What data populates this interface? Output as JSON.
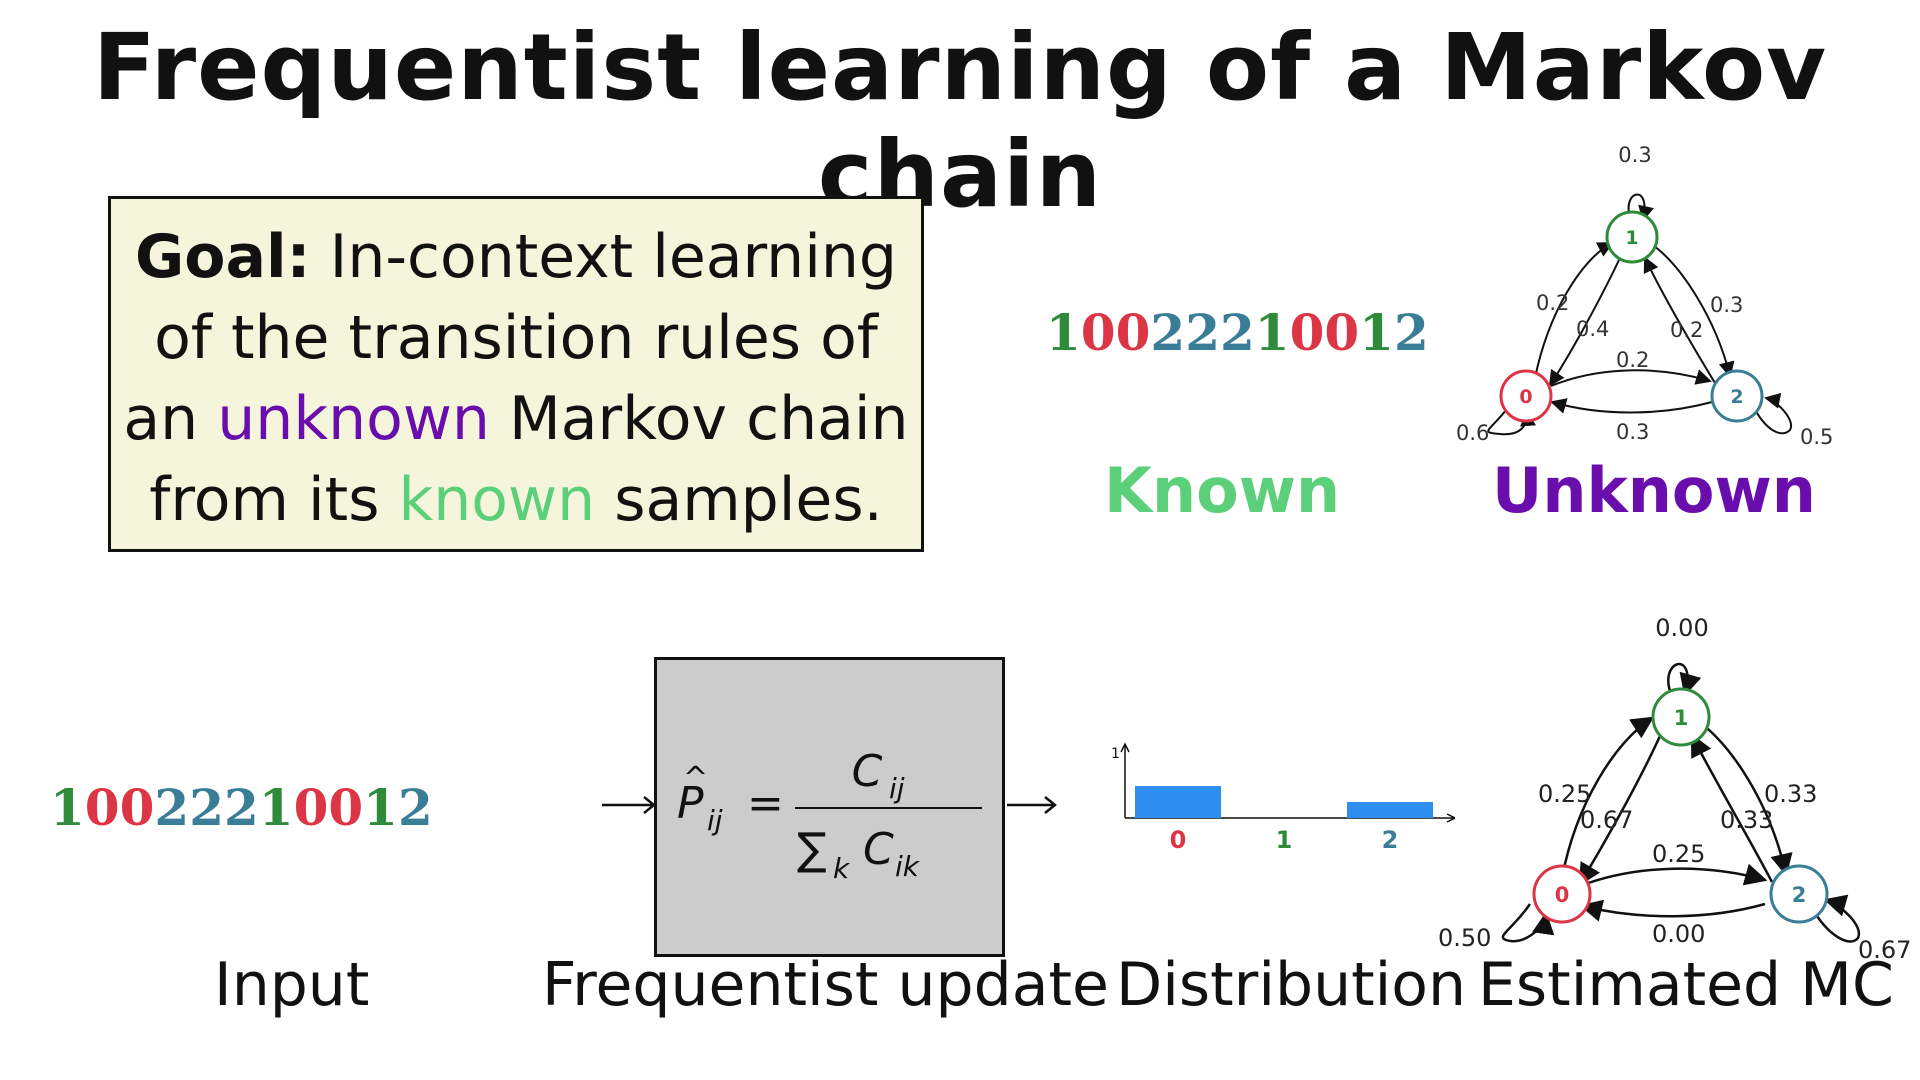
{
  "title": "Frequentist learning of a Markov chain",
  "goal": {
    "bold_prefix": "Goal:",
    "line1_rest": " In-context learning",
    "line2": "of the transition rules of",
    "line3_prefix": "an ",
    "line3_highlight": "unknown",
    "line3_suffix": " Markov chain",
    "line4_prefix": "from its ",
    "line4_highlight": "known",
    "line4_suffix": " samples."
  },
  "sequence": [
    "1",
    "0",
    "0",
    "2",
    "2",
    "2",
    "1",
    "0",
    "0",
    "1",
    "2"
  ],
  "labels": {
    "known": "Known",
    "unknown": "Unknown"
  },
  "captions": {
    "input": "Input",
    "update": "Frequentist update",
    "distribution": "Distribution",
    "estimated": "Estimated MC"
  },
  "true_chain": {
    "nodes": [
      "0",
      "1",
      "2"
    ],
    "edges": [
      {
        "from": "1",
        "to": "1",
        "p": "0.3"
      },
      {
        "from": "1",
        "to": "0",
        "p": "0.4"
      },
      {
        "from": "0",
        "to": "1",
        "p": "0.2"
      },
      {
        "from": "1",
        "to": "2",
        "p": "0.3"
      },
      {
        "from": "2",
        "to": "1",
        "p": "0.2"
      },
      {
        "from": "0",
        "to": "2",
        "p": "0.2"
      },
      {
        "from": "2",
        "to": "0",
        "p": "0.3"
      },
      {
        "from": "0",
        "to": "0",
        "p": "0.6"
      },
      {
        "from": "2",
        "to": "2",
        "p": "0.5"
      }
    ]
  },
  "estimated_chain": {
    "nodes": [
      "0",
      "1",
      "2"
    ],
    "edges": [
      {
        "from": "1",
        "to": "1",
        "p": "0.00"
      },
      {
        "from": "1",
        "to": "0",
        "p": "0.67"
      },
      {
        "from": "0",
        "to": "1",
        "p": "0.25"
      },
      {
        "from": "1",
        "to": "2",
        "p": "0.33"
      },
      {
        "from": "2",
        "to": "1",
        "p": "0.33"
      },
      {
        "from": "0",
        "to": "2",
        "p": "0.25"
      },
      {
        "from": "2",
        "to": "0",
        "p": "0.00"
      },
      {
        "from": "0",
        "to": "0",
        "p": "0.50"
      },
      {
        "from": "2",
        "to": "2",
        "p": "0.67"
      }
    ]
  },
  "chart_data": {
    "type": "bar",
    "categories": [
      "0",
      "1",
      "2"
    ],
    "values": [
      0.5,
      0.0,
      0.25
    ],
    "ylim": [
      0,
      1
    ],
    "ytick_labels": [
      "1"
    ],
    "category_colors": [
      "#dc3545",
      "#2e8b3a",
      "#3a7d96"
    ],
    "bar_color": "#2e8ff0"
  },
  "colors": {
    "node0": "#dc3545",
    "node1": "#2e8b3a",
    "node2": "#3a7d96",
    "purple": "#6a0dad",
    "green": "#5ccf7a"
  }
}
